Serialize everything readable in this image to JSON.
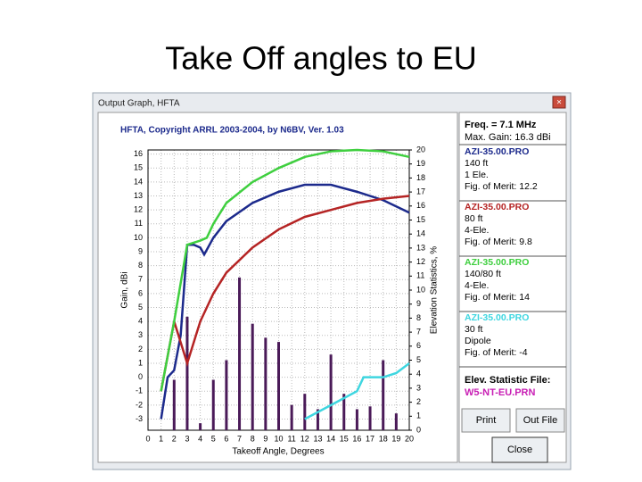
{
  "slide_title": "Take Off angles to EU",
  "window": {
    "title": "Output Graph, HFTA",
    "buttons": {
      "print": "Print",
      "out_file": "Out File",
      "close": "Close"
    }
  },
  "panel": {
    "freq": "Freq. = 7.1 MHz",
    "max_gain": "Max. Gain: 16.3 dBi",
    "stat_label": "Elev. Statistic File:",
    "stat_file": "W5-NT-EU.PRN"
  },
  "chart_data": {
    "type": "line",
    "title": "HFTA, Copyright ARRL 2003-2004, by N6BV, Ver. 1.03",
    "x_label": "Takeoff Angle, Degrees",
    "y_label": "Gain, dBi",
    "y2_label": "Elevation Statistics, %",
    "xlim": [
      0,
      20
    ],
    "xticks": [
      0,
      1,
      2,
      3,
      4,
      5,
      6,
      7,
      8,
      9,
      10,
      11,
      12,
      13,
      14,
      15,
      16,
      17,
      18,
      19,
      20
    ],
    "ylim": [
      -3.8,
      16.3
    ],
    "yticks": [
      -3,
      -2,
      -1,
      0,
      1,
      2,
      3,
      4,
      5,
      6,
      7,
      8,
      9,
      10,
      11,
      12,
      13,
      14,
      15,
      16
    ],
    "y2lim": [
      0,
      20
    ],
    "y2ticks": [
      0,
      1,
      2,
      3,
      4,
      5,
      6,
      7,
      8,
      9,
      10,
      11,
      12,
      13,
      14,
      15,
      16,
      17,
      18,
      19,
      20
    ],
    "grid": true,
    "series": [
      {
        "name": "AZI-35.00.PRO",
        "details": [
          "140 ft",
          "1 Ele.",
          "Fig. of Merit: 12.2"
        ],
        "color": "#1c2a8c",
        "x": [
          1,
          1.5,
          2,
          2.5,
          3,
          3.5,
          4,
          4.3,
          5,
          6,
          8,
          10,
          12,
          14,
          16,
          18,
          20
        ],
        "values": [
          -3,
          0,
          0.5,
          3,
          9.5,
          9.5,
          9.3,
          8.8,
          10,
          11.2,
          12.5,
          13.3,
          13.8,
          13.8,
          13.3,
          12.7,
          11.8
        ]
      },
      {
        "name": "AZI-35.00.PRO",
        "details": [
          "80 ft",
          "4-Ele.",
          "Fig. of Merit: 9.8"
        ],
        "color": "#b52424",
        "x": [
          1,
          2,
          3,
          4,
          5,
          6,
          8,
          10,
          12,
          14,
          16,
          18,
          20
        ],
        "values": [
          -1,
          4,
          1,
          4,
          6,
          7.5,
          9.3,
          10.6,
          11.5,
          12,
          12.5,
          12.8,
          13
        ]
      },
      {
        "name": "AZI-35.00.PRO",
        "details": [
          "140/80 ft",
          "4-Ele.",
          "Fig. of Merit: 14"
        ],
        "color": "#3fcf3f",
        "x": [
          1,
          2,
          3,
          4,
          4.5,
          5,
          6,
          8,
          10,
          12,
          14,
          16,
          18,
          20
        ],
        "values": [
          -1,
          4,
          9.5,
          9.8,
          10,
          11,
          12.5,
          14,
          15,
          15.8,
          16.2,
          16.3,
          16.2,
          15.8
        ]
      },
      {
        "name": "AZI-35.00.PRO",
        "details": [
          "30 ft",
          "Dipole",
          "Fig. of Merit: -4"
        ],
        "color": "#3ed6e0",
        "x": [
          12,
          14,
          15,
          16,
          16.5,
          17,
          18,
          19,
          20
        ],
        "values": [
          -3,
          -2,
          -1.5,
          -1,
          0,
          0,
          0,
          0.3,
          1
        ]
      }
    ],
    "elevation_stats": {
      "color": "#4a1a58",
      "axis": "y2",
      "x": [
        2,
        3,
        4,
        5,
        6,
        7,
        8,
        9,
        10,
        11,
        12,
        13,
        14,
        15,
        16,
        17,
        18,
        19
      ],
      "values": [
        3.6,
        8.1,
        0.5,
        3.6,
        5,
        10.9,
        7.6,
        6.6,
        6.3,
        1.8,
        2.6,
        1.5,
        5.4,
        2.6,
        1.5,
        1.7,
        5,
        1.2
      ]
    }
  }
}
